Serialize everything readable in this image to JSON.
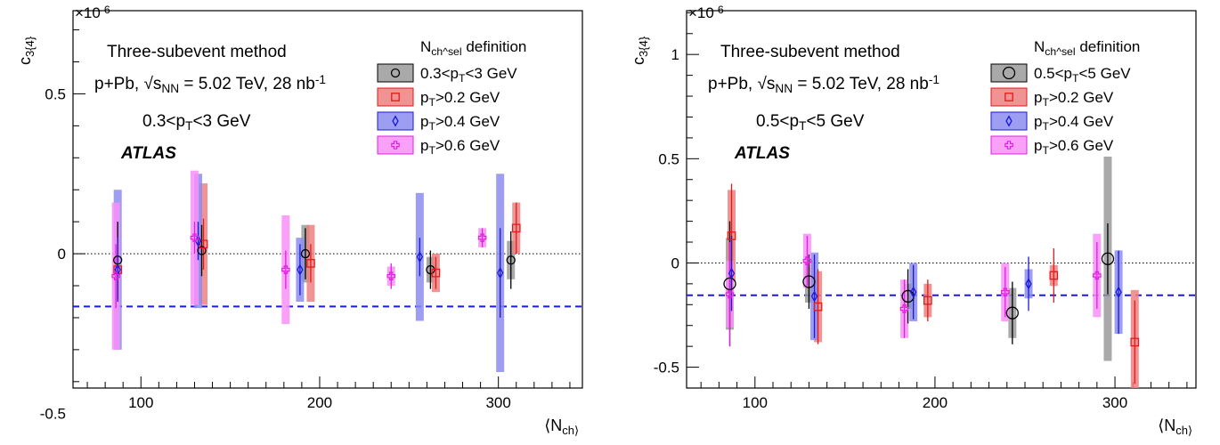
{
  "chart_data": [
    {
      "type": "scatter",
      "xlabel": "⟨N_ch⟩",
      "ylabel": "c_3{4}",
      "y_exponent": "×10^-6",
      "xlim": [
        62,
        347
      ],
      "ylim": [
        -0.42,
        0.76
      ],
      "x_ticks": [
        100,
        200,
        300
      ],
      "y_ticks": [
        {
          "value": -0.5,
          "label": "-0.5"
        },
        {
          "value": 0,
          "label": "0"
        },
        {
          "value": 0.5,
          "label": "0.5"
        }
      ],
      "zero_line": true,
      "reference_line": {
        "y": -0.165,
        "color": "#1a1aee",
        "style": "dashed"
      },
      "annotations": [
        "Three-subevent method",
        "p+Pb, √s_NN = 5.02 TeV, 28 nb^-1",
        "0.3<p_T<3 GeV",
        "ATLAS"
      ],
      "legend_title": "N_ch^sel definition",
      "legend_position": "top-right",
      "series": [
        {
          "name": "0.3<p_T<3 GeV",
          "marker": "circle",
          "color": "#000000",
          "fill": "#9a9a9a",
          "points": [
            {
              "x": 87,
              "y": -0.02,
              "stat": 0.12,
              "sys": 0.0
            },
            {
              "x": 134,
              "y": 0.01,
              "stat": 0.08,
              "sys": 0.0
            },
            {
              "x": 192,
              "y": 0.0,
              "stat": 0.08,
              "sys": 0.09
            },
            {
              "x": 262,
              "y": -0.05,
              "stat": 0.06,
              "sys": 0.04
            },
            {
              "x": 307,
              "y": -0.02,
              "stat": 0.09,
              "sys": 0.06
            }
          ]
        },
        {
          "name": "p_T>0.2 GeV",
          "marker": "square",
          "color": "#e31a1a",
          "fill": "#f08080",
          "points": [
            {
              "x": 87,
              "y": -0.05,
              "stat": 0.09,
              "sys": 0.0
            },
            {
              "x": 135,
              "y": 0.03,
              "stat": 0.08,
              "sys": 0.19
            },
            {
              "x": 195,
              "y": -0.03,
              "stat": 0.06,
              "sys": 0.12
            },
            {
              "x": 265,
              "y": -0.06,
              "stat": 0.05,
              "sys": 0.06
            },
            {
              "x": 310,
              "y": 0.08,
              "stat": 0.08,
              "sys": 0.08
            }
          ]
        },
        {
          "name": "p_T>0.4 GeV",
          "marker": "diamond",
          "color": "#1a1ad6",
          "fill": "#8c8cf0",
          "points": [
            {
              "x": 87,
              "y": -0.05,
              "stat": 0.1,
              "sys": 0.25
            },
            {
              "x": 132,
              "y": 0.04,
              "stat": 0.06,
              "sys": 0.21
            },
            {
              "x": 189,
              "y": -0.05,
              "stat": 0.08,
              "sys": 0.1
            },
            {
              "x": 256,
              "y": -0.01,
              "stat": 0.06,
              "sys": 0.2
            },
            {
              "x": 301,
              "y": -0.06,
              "stat": 0.14,
              "sys": 0.31
            }
          ]
        },
        {
          "name": "p_T>0.6 GeV",
          "marker": "cross",
          "color": "#e020e0",
          "fill": "#f890f8",
          "points": [
            {
              "x": 86,
              "y": -0.07,
              "stat": 0.1,
              "sys": 0.23
            },
            {
              "x": 130,
              "y": 0.05,
              "stat": 0.05,
              "sys": 0.21
            },
            {
              "x": 181,
              "y": -0.05,
              "stat": 0.06,
              "sys": 0.17
            },
            {
              "x": 240,
              "y": -0.07,
              "stat": 0.04,
              "sys": 0.03
            },
            {
              "x": 291,
              "y": 0.05,
              "stat": 0.03,
              "sys": 0.03
            }
          ]
        }
      ]
    },
    {
      "type": "scatter",
      "xlabel": "⟨N_ch⟩",
      "ylabel": "c_3{4}",
      "y_exponent": "×10^-6",
      "xlim": [
        62,
        345
      ],
      "ylim": [
        -0.6,
        1.21
      ],
      "x_ticks": [
        100,
        200,
        300
      ],
      "y_ticks": [
        {
          "value": -0.5,
          "label": "-0.5"
        },
        {
          "value": 0,
          "label": "0"
        },
        {
          "value": 0.5,
          "label": "0.5"
        },
        {
          "value": 1,
          "label": "1"
        }
      ],
      "zero_line": true,
      "reference_line": {
        "y": -0.155,
        "color": "#1a1aee",
        "style": "dashed"
      },
      "annotations": [
        "Three-subevent method",
        "p+Pb, √s_NN = 5.02 TeV, 28 nb^-1",
        "0.5<p_T<5 GeV",
        "ATLAS"
      ],
      "legend_title": "N_ch^sel definition",
      "legend_position": "top-right",
      "series": [
        {
          "name": "0.5<p_T<5 GeV",
          "marker": "circle",
          "color": "#000000",
          "fill": "#9a9a9a",
          "points": [
            {
              "x": 86,
              "y": -0.1,
              "stat": 0.3,
              "sys": 0.22
            },
            {
              "x": 130,
              "y": -0.09,
              "stat": 0.13,
              "sys": 0.1
            },
            {
              "x": 185,
              "y": -0.16,
              "stat": 0.13,
              "sys": 0.06
            },
            {
              "x": 243,
              "y": -0.24,
              "stat": 0.15,
              "sys": 0.12
            },
            {
              "x": 296,
              "y": 0.02,
              "stat": 0.17,
              "sys": 0.49
            }
          ]
        },
        {
          "name": "p_T>0.2 GeV",
          "marker": "square",
          "color": "#e31a1a",
          "fill": "#f08080",
          "points": [
            {
              "x": 87,
              "y": 0.13,
              "stat": 0.25,
              "sys": 0.22
            },
            {
              "x": 135,
              "y": -0.21,
              "stat": 0.18,
              "sys": 0.17
            },
            {
              "x": 196,
              "y": -0.18,
              "stat": 0.1,
              "sys": 0.08
            },
            {
              "x": 266,
              "y": -0.06,
              "stat": 0.13,
              "sys": 0.05
            },
            {
              "x": 311,
              "y": -0.38,
              "stat": 0.2,
              "sys": 0.25
            }
          ]
        },
        {
          "name": "p_T>0.4 GeV",
          "marker": "diamond",
          "color": "#1a1ad6",
          "fill": "#8c8cf0",
          "points": [
            {
              "x": 87,
              "y": -0.05,
              "stat": 0.18,
              "sys": 0.0
            },
            {
              "x": 133,
              "y": -0.16,
              "stat": 0.2,
              "sys": 0.21
            },
            {
              "x": 188,
              "y": -0.14,
              "stat": 0.13,
              "sys": 0.14
            },
            {
              "x": 252,
              "y": -0.1,
              "stat": 0.13,
              "sys": 0.07
            },
            {
              "x": 302,
              "y": -0.14,
              "stat": 0.2,
              "sys": 0.2
            }
          ]
        },
        {
          "name": "p_T>0.6 GeV",
          "marker": "cross",
          "color": "#e020e0",
          "fill": "#f890f8",
          "points": [
            {
              "x": 86,
              "y": -0.15,
              "stat": 0.25,
              "sys": 0.16
            },
            {
              "x": 129,
              "y": 0.01,
              "stat": 0.12,
              "sys": 0.13
            },
            {
              "x": 183,
              "y": -0.22,
              "stat": 0.14,
              "sys": 0.14
            },
            {
              "x": 239,
              "y": -0.14,
              "stat": 0.12,
              "sys": 0.14
            },
            {
              "x": 290,
              "y": -0.06,
              "stat": 0.16,
              "sys": 0.2
            }
          ]
        }
      ]
    }
  ]
}
